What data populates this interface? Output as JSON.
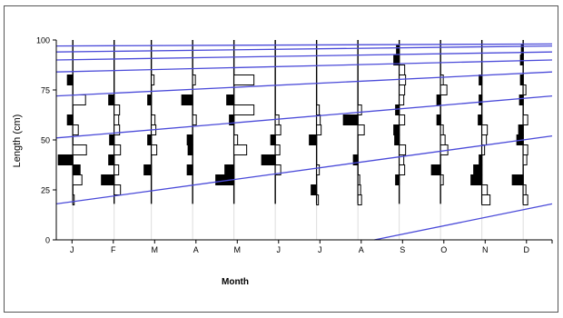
{
  "chart_data": {
    "type": "length-frequency",
    "xlabel": "Month",
    "ylabel": "Length (cm)",
    "ylim": [
      0,
      100
    ],
    "yticks": [
      0,
      25,
      50,
      75,
      100
    ],
    "months": [
      "J",
      "F",
      "M",
      "A",
      "M",
      "J",
      "J",
      "A",
      "S",
      "O",
      "N",
      "D"
    ],
    "x_domain": [
      0,
      12
    ],
    "sample_positions": [
      0.4,
      1.4,
      2.3,
      3.3,
      4.3,
      5.3,
      6.3,
      7.3,
      8.3,
      9.3,
      10.3,
      11.3
    ],
    "legend": "none",
    "grid": false,
    "colors": {
      "growth_curve": "#4a4ad9",
      "mode": "#000000",
      "bar_outline": "#000000",
      "axis": "#000000"
    },
    "growth_curves": [
      {
        "points": [
          [
            0,
            0
          ],
          [
            12,
            0
          ]
        ],
        "start": [
          7.7,
          0
        ],
        "end": [
          12,
          18
        ]
      },
      {
        "start": [
          0,
          18
        ],
        "end": [
          12,
          52
        ]
      },
      {
        "start": [
          0,
          51
        ],
        "end": [
          12,
          72
        ]
      },
      {
        "start": [
          0,
          72
        ],
        "end": [
          12,
          84
        ]
      },
      {
        "start": [
          0,
          84
        ],
        "end": [
          12,
          90
        ]
      },
      {
        "start": [
          0,
          90
        ],
        "end": [
          12,
          94
        ]
      },
      {
        "start": [
          0,
          94
        ],
        "end": [
          12,
          97
        ]
      },
      {
        "start": [
          0,
          97
        ],
        "end": [
          12,
          98
        ]
      }
    ],
    "samples": [
      {
        "month": "J",
        "bins": [
          {
            "length": 20,
            "freq": 0.0,
            "mode": false
          },
          {
            "length": 30,
            "freq": 1.0,
            "mode": false
          },
          {
            "length": 35,
            "freq": 0.8,
            "mode": true
          },
          {
            "length": 40,
            "freq": -1.6,
            "mode": true
          },
          {
            "length": 45,
            "freq": 1.5,
            "mode": false
          },
          {
            "length": 55,
            "freq": 0.6,
            "mode": false
          },
          {
            "length": 60,
            "freq": -0.6,
            "mode": true
          },
          {
            "length": 70,
            "freq": 1.4,
            "mode": false
          },
          {
            "length": 80,
            "freq": -0.6,
            "mode": true
          }
        ]
      },
      {
        "month": "F",
        "bins": [
          {
            "length": 25,
            "freq": 0.7,
            "mode": false
          },
          {
            "length": 30,
            "freq": -1.4,
            "mode": true
          },
          {
            "length": 35,
            "freq": 0.5,
            "mode": false
          },
          {
            "length": 40,
            "freq": -0.6,
            "mode": true
          },
          {
            "length": 45,
            "freq": 0.7,
            "mode": false
          },
          {
            "length": 50,
            "freq": -0.5,
            "mode": true
          },
          {
            "length": 55,
            "freq": 0.6,
            "mode": false
          },
          {
            "length": 60,
            "freq": 0.5,
            "mode": false
          },
          {
            "length": 65,
            "freq": 0.6,
            "mode": false
          },
          {
            "length": 70,
            "freq": -0.6,
            "mode": true
          }
        ]
      },
      {
        "month": "M",
        "bins": [
          {
            "length": 35,
            "freq": -0.8,
            "mode": true
          },
          {
            "length": 45,
            "freq": 0.6,
            "mode": false
          },
          {
            "length": 50,
            "freq": -0.4,
            "mode": true
          },
          {
            "length": 55,
            "freq": 0.5,
            "mode": false
          },
          {
            "length": 60,
            "freq": 0.4,
            "mode": false
          },
          {
            "length": 70,
            "freq": -0.4,
            "mode": true
          },
          {
            "length": 80,
            "freq": 0.3,
            "mode": false
          }
        ]
      },
      {
        "month": "A",
        "bins": [
          {
            "length": 35,
            "freq": -0.6,
            "mode": true
          },
          {
            "length": 45,
            "freq": -0.5,
            "mode": true
          },
          {
            "length": 50,
            "freq": -0.6,
            "mode": true
          },
          {
            "length": 60,
            "freq": 0.4,
            "mode": false
          },
          {
            "length": 70,
            "freq": -1.2,
            "mode": true
          },
          {
            "length": 80,
            "freq": 0.3,
            "mode": false
          }
        ]
      },
      {
        "month": "M",
        "bins": [
          {
            "length": 30,
            "freq": -2.0,
            "mode": true
          },
          {
            "length": 35,
            "freq": -1.0,
            "mode": true
          },
          {
            "length": 45,
            "freq": 1.4,
            "mode": false
          },
          {
            "length": 50,
            "freq": 0.4,
            "mode": false
          },
          {
            "length": 60,
            "freq": -0.5,
            "mode": true
          },
          {
            "length": 65,
            "freq": 2.2,
            "mode": false
          },
          {
            "length": 70,
            "freq": -0.8,
            "mode": true
          },
          {
            "length": 80,
            "freq": 2.2,
            "mode": false
          }
        ]
      },
      {
        "month": "J",
        "bins": [
          {
            "length": 35,
            "freq": 0.6,
            "mode": false
          },
          {
            "length": 40,
            "freq": -1.5,
            "mode": true
          },
          {
            "length": 45,
            "freq": 0.5,
            "mode": false
          },
          {
            "length": 50,
            "freq": -0.5,
            "mode": true
          },
          {
            "length": 55,
            "freq": 0.6,
            "mode": false
          },
          {
            "length": 60,
            "freq": 0.4,
            "mode": false
          }
        ]
      },
      {
        "month": "J",
        "bins": [
          {
            "length": 20,
            "freq": 0.2,
            "mode": false
          },
          {
            "length": 25,
            "freq": -0.6,
            "mode": true
          },
          {
            "length": 35,
            "freq": 0.3,
            "mode": false
          },
          {
            "length": 50,
            "freq": -0.8,
            "mode": true
          },
          {
            "length": 55,
            "freq": 0.5,
            "mode": false
          },
          {
            "length": 60,
            "freq": 0.4,
            "mode": false
          },
          {
            "length": 65,
            "freq": 0.3,
            "mode": false
          }
        ]
      },
      {
        "month": "A",
        "bins": [
          {
            "length": 20,
            "freq": 0.4,
            "mode": false
          },
          {
            "length": 25,
            "freq": 0.3,
            "mode": false
          },
          {
            "length": 30,
            "freq": 0.2,
            "mode": false
          },
          {
            "length": 40,
            "freq": -0.5,
            "mode": true
          },
          {
            "length": 55,
            "freq": 0.7,
            "mode": false
          },
          {
            "length": 60,
            "freq": -1.6,
            "mode": true
          },
          {
            "length": 65,
            "freq": 0.4,
            "mode": false
          }
        ]
      },
      {
        "month": "S",
        "bins": [
          {
            "length": 30,
            "freq": -0.4,
            "mode": true
          },
          {
            "length": 35,
            "freq": 0.6,
            "mode": false
          },
          {
            "length": 40,
            "freq": 0.5,
            "mode": false
          },
          {
            "length": 45,
            "freq": 0.7,
            "mode": false
          },
          {
            "length": 50,
            "freq": -0.5,
            "mode": true
          },
          {
            "length": 55,
            "freq": -0.6,
            "mode": true
          },
          {
            "length": 60,
            "freq": 0.6,
            "mode": false
          },
          {
            "length": 65,
            "freq": -0.4,
            "mode": true
          },
          {
            "length": 70,
            "freq": 0.5,
            "mode": false
          },
          {
            "length": 75,
            "freq": 0.6,
            "mode": false
          },
          {
            "length": 80,
            "freq": 0.7,
            "mode": false
          },
          {
            "length": 85,
            "freq": 0.6,
            "mode": false
          },
          {
            "length": 90,
            "freq": -0.6,
            "mode": true
          },
          {
            "length": 95,
            "freq": -0.3,
            "mode": true
          }
        ]
      },
      {
        "month": "O",
        "bins": [
          {
            "length": 30,
            "freq": 0.3,
            "mode": false
          },
          {
            "length": 35,
            "freq": -1.0,
            "mode": true
          },
          {
            "length": 45,
            "freq": 0.8,
            "mode": false
          },
          {
            "length": 50,
            "freq": 0.5,
            "mode": false
          },
          {
            "length": 55,
            "freq": 0.3,
            "mode": false
          },
          {
            "length": 60,
            "freq": -0.4,
            "mode": true
          },
          {
            "length": 70,
            "freq": -0.4,
            "mode": true
          },
          {
            "length": 75,
            "freq": 0.7,
            "mode": false
          },
          {
            "length": 80,
            "freq": 0.3,
            "mode": false
          }
        ]
      },
      {
        "month": "N",
        "bins": [
          {
            "length": 20,
            "freq": 0.9,
            "mode": false
          },
          {
            "length": 25,
            "freq": 0.6,
            "mode": false
          },
          {
            "length": 30,
            "freq": -1.2,
            "mode": true
          },
          {
            "length": 35,
            "freq": -0.9,
            "mode": true
          },
          {
            "length": 40,
            "freq": -0.3,
            "mode": true
          },
          {
            "length": 45,
            "freq": 0.3,
            "mode": false
          },
          {
            "length": 50,
            "freq": 0.5,
            "mode": false
          },
          {
            "length": 55,
            "freq": 0.6,
            "mode": false
          },
          {
            "length": 60,
            "freq": -0.4,
            "mode": true
          },
          {
            "length": 70,
            "freq": -0.3,
            "mode": true
          },
          {
            "length": 80,
            "freq": -0.3,
            "mode": true
          }
        ]
      },
      {
        "month": "D",
        "bins": [
          {
            "length": 20,
            "freq": 0.5,
            "mode": false
          },
          {
            "length": 25,
            "freq": 0.3,
            "mode": false
          },
          {
            "length": 30,
            "freq": -1.2,
            "mode": true
          },
          {
            "length": 40,
            "freq": 0.4,
            "mode": false
          },
          {
            "length": 45,
            "freq": 0.5,
            "mode": false
          },
          {
            "length": 50,
            "freq": -0.7,
            "mode": true
          },
          {
            "length": 55,
            "freq": -0.5,
            "mode": true
          },
          {
            "length": 60,
            "freq": 0.5,
            "mode": false
          },
          {
            "length": 70,
            "freq": -0.4,
            "mode": true
          },
          {
            "length": 75,
            "freq": 0.3,
            "mode": false
          },
          {
            "length": 80,
            "freq": -0.3,
            "mode": true
          },
          {
            "length": 90,
            "freq": -0.3,
            "mode": true
          },
          {
            "length": 95,
            "freq": -0.2,
            "mode": true
          }
        ]
      }
    ]
  }
}
